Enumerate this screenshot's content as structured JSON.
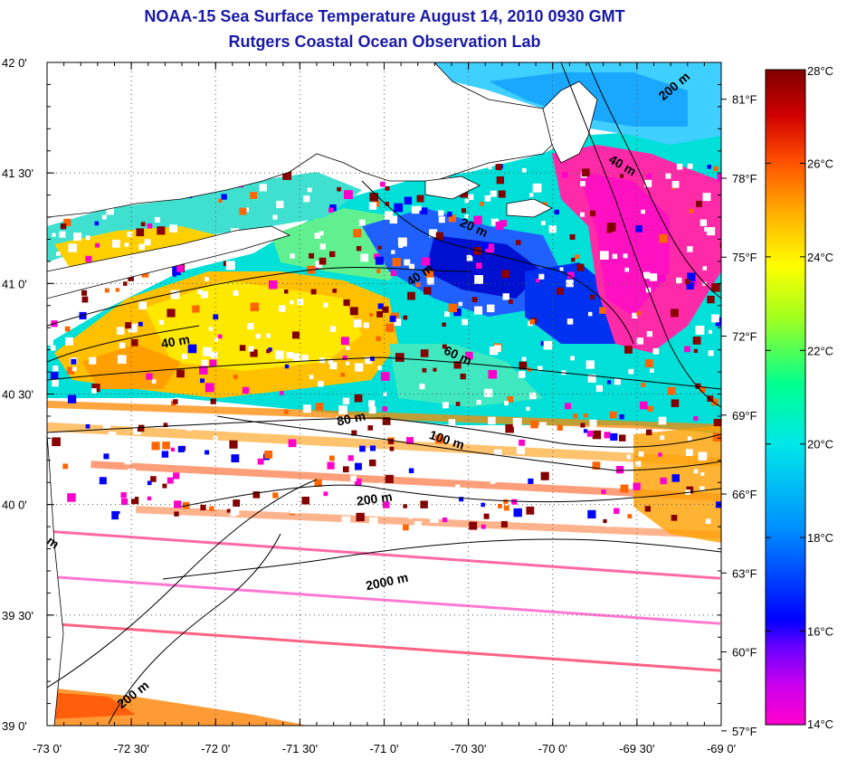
{
  "title": "NOAA-15 Sea Surface Temperature August 14, 2010 0930 GMT",
  "subtitle": "Rutgers Coastal Ocean Observation Lab",
  "map": {
    "lon_range": [
      -73.0,
      -69.0
    ],
    "lat_range": [
      39.0,
      42.0
    ],
    "grid": true,
    "lon_ticks": [
      "-73 0'",
      "-72 30'",
      "-72 0'",
      "-71 30'",
      "-71 0'",
      "-70 30'",
      "-70 0'",
      "-69 30'",
      "-69 0'"
    ],
    "lat_ticks": [
      "39 0'",
      "39 30'",
      "40 0'",
      "40 30'",
      "41 0'",
      "41 30'",
      "42 0'"
    ],
    "fahrenheit_ticks": [
      "81°F",
      "78°F",
      "75°F",
      "72°F",
      "69°F",
      "66°F",
      "63°F",
      "60°F",
      "57°F"
    ],
    "contour_labels": [
      "200 m",
      "40 m",
      "20 m",
      "40 m",
      "40 m",
      "60 m",
      "80 m",
      "100 m",
      "200 m",
      "2000 m",
      "200 m",
      "m"
    ]
  },
  "colorbar": {
    "range_c": [
      14,
      28
    ],
    "ticks": [
      "28°C",
      "26°C",
      "24°C",
      "22°C",
      "20°C",
      "18°C",
      "16°C",
      "14°C"
    ],
    "colors": [
      "#ff00cc",
      "#9900ff",
      "#0000ff",
      "#0099ff",
      "#00e0e0",
      "#00ff80",
      "#c0ff00",
      "#ffff00",
      "#ffaa00",
      "#ff3300",
      "#cc0000",
      "#880000"
    ]
  },
  "land_color": "#ffffff",
  "cloud_color": "#ffffff"
}
